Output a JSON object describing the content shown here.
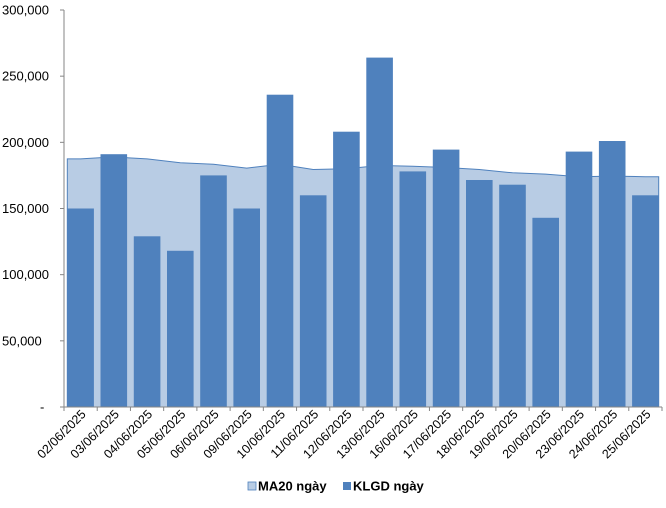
{
  "chart_data": {
    "type": "bar",
    "categories": [
      "02/06/2025",
      "03/06/2025",
      "04/06/2025",
      "05/06/2025",
      "06/06/2025",
      "09/06/2025",
      "10/06/2025",
      "11/06/2025",
      "12/06/2025",
      "13/06/2025",
      "16/06/2025",
      "17/06/2025",
      "18/06/2025",
      "19/06/2025",
      "20/06/2025",
      "23/06/2025",
      "24/06/2025",
      "25/06/2025"
    ],
    "series": [
      {
        "name": "MA20 ngày",
        "kind": "area",
        "color": "#b8cce4",
        "edge_color": "#4f81bd",
        "values": [
          187500,
          189000,
          187500,
          184500,
          183500,
          180500,
          183500,
          179500,
          180000,
          182500,
          182000,
          181000,
          179500,
          177000,
          176000,
          174000,
          174500,
          174000
        ]
      },
      {
        "name": "KLGD ngày",
        "kind": "bar",
        "color": "#4f81bd",
        "values": [
          150000,
          191000,
          129000,
          118000,
          175000,
          150000,
          236000,
          160000,
          208000,
          264000,
          178000,
          194500,
          171500,
          168000,
          143000,
          193000,
          201000,
          160000
        ]
      }
    ],
    "yticks": [
      "-",
      "50,000",
      "100,000",
      "150,000",
      "200,000",
      "250,000",
      "300,000"
    ],
    "ylim": [
      0,
      300000
    ],
    "title": "",
    "xlabel": "",
    "ylabel": "",
    "legend_position": "bottom",
    "grid": false
  }
}
